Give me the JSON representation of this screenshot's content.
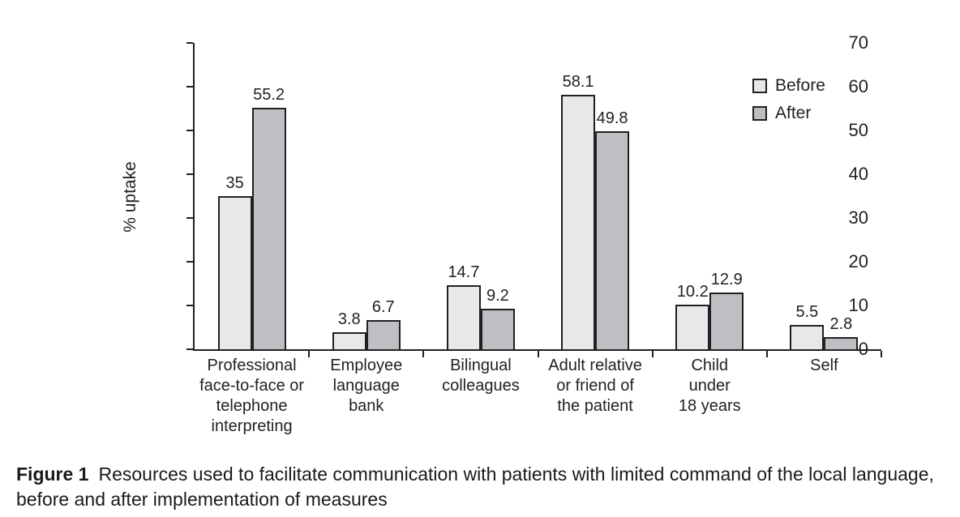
{
  "chart_data": {
    "type": "bar",
    "title": "",
    "xlabel": "",
    "ylabel": "% uptake",
    "ylim": [
      0,
      70
    ],
    "yticks": [
      0,
      10,
      20,
      30,
      40,
      50,
      60,
      70
    ],
    "grid": false,
    "legend_position": "top-right",
    "bar_outline_color": "#231f20",
    "categories": [
      "Professional face-to-face or telephone interpreting",
      "Employee language bank",
      "Bilingual colleagues",
      "Adult relative or friend of the patient",
      "Child under 18 years",
      "Self"
    ],
    "category_label_lines": [
      [
        "Professional",
        "face-to-face or",
        "telephone",
        "interpreting"
      ],
      [
        "Employee",
        "language",
        "bank"
      ],
      [
        "Bilingual",
        "colleagues"
      ],
      [
        "Adult relative",
        "or friend of",
        "the patient"
      ],
      [
        "Child",
        "under",
        "18 years"
      ],
      [
        "Self"
      ]
    ],
    "series": [
      {
        "name": "Before",
        "color": "#e8e8ea",
        "values": [
          35,
          3.8,
          14.7,
          58.1,
          10.2,
          5.5
        ]
      },
      {
        "name": "After",
        "color": "#bdbfc2",
        "values": [
          55.2,
          6.7,
          9.2,
          49.8,
          12.9,
          2.8
        ]
      }
    ]
  },
  "caption": {
    "label": "Figure 1",
    "text": "Resources used to facilitate communication with patients with limited command of the local language, before and after implementation of measures"
  }
}
